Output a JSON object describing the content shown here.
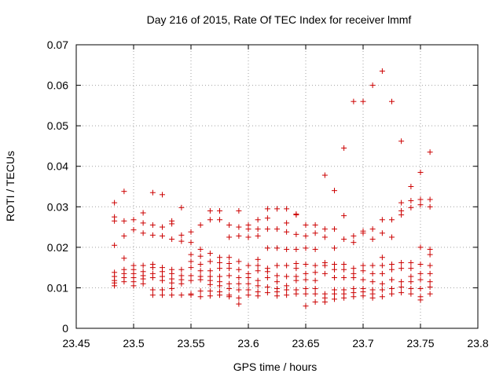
{
  "chart_data": {
    "type": "scatter",
    "title": "Day 216 of 2015, Rate Of TEC Index for receiver lmmf",
    "xlabel": "GPS time / hours",
    "ylabel": "ROTI / TECUs",
    "xlim": [
      23.45,
      23.8
    ],
    "ylim": [
      0,
      0.07
    ],
    "xticks": [
      "23.45",
      "23.5",
      "23.55",
      "23.6",
      "23.65",
      "23.7",
      "23.75",
      "23.8"
    ],
    "yticks": [
      "0",
      "0.01",
      "0.02",
      "0.03",
      "0.04",
      "0.05",
      "0.06",
      "0.07"
    ],
    "grid": true,
    "marker": "+",
    "color": "#cc0000",
    "series": [
      {
        "x": 23.4833,
        "y": [
          0.031,
          0.0275,
          0.0265,
          0.0205,
          0.0138,
          0.0128,
          0.0118,
          0.0112,
          0.0105
        ]
      },
      {
        "x": 23.4917,
        "y": [
          0.0338,
          0.0265,
          0.0228,
          0.0173,
          0.0145,
          0.0135,
          0.0125,
          0.0115
        ]
      },
      {
        "x": 23.5,
        "y": [
          0.0268,
          0.0243,
          0.0155,
          0.0145,
          0.0135,
          0.0125,
          0.0115,
          0.0105
        ]
      },
      {
        "x": 23.5083,
        "y": [
          0.0285,
          0.026,
          0.0235,
          0.0155,
          0.014,
          0.013,
          0.0122,
          0.011
        ]
      },
      {
        "x": 23.5167,
        "y": [
          0.0335,
          0.0255,
          0.023,
          0.0158,
          0.015,
          0.0135,
          0.0125,
          0.0095,
          0.0082
        ]
      },
      {
        "x": 23.525,
        "y": [
          0.033,
          0.025,
          0.0228,
          0.015,
          0.014,
          0.0128,
          0.0118,
          0.0095,
          0.0082
        ]
      },
      {
        "x": 23.5333,
        "y": [
          0.0265,
          0.0258,
          0.022,
          0.0145,
          0.0135,
          0.0122,
          0.0112,
          0.0098,
          0.0082
        ]
      },
      {
        "x": 23.5417,
        "y": [
          0.0298,
          0.023,
          0.0215,
          0.0145,
          0.013,
          0.012,
          0.011,
          0.0082
        ]
      },
      {
        "x": 23.55,
        "y": [
          0.0238,
          0.0212,
          0.0182,
          0.0165,
          0.015,
          0.013,
          0.0118,
          0.0085,
          0.0082
        ]
      },
      {
        "x": 23.5583,
        "y": [
          0.0255,
          0.0195,
          0.0178,
          0.0158,
          0.0142,
          0.0128,
          0.012,
          0.0092,
          0.0078
        ]
      },
      {
        "x": 23.5667,
        "y": [
          0.029,
          0.0268,
          0.0185,
          0.0165,
          0.0142,
          0.0128,
          0.0118,
          0.0108,
          0.0092,
          0.008
        ]
      },
      {
        "x": 23.575,
        "y": [
          0.029,
          0.0268,
          0.0175,
          0.0162,
          0.0148,
          0.0128,
          0.0115,
          0.0105,
          0.009,
          0.0082
        ]
      },
      {
        "x": 23.5833,
        "y": [
          0.0255,
          0.0225,
          0.0175,
          0.016,
          0.0148,
          0.013,
          0.011,
          0.0098,
          0.0082,
          0.0078
        ]
      },
      {
        "x": 23.5917,
        "y": [
          0.029,
          0.025,
          0.0228,
          0.0165,
          0.0145,
          0.0125,
          0.011,
          0.0095,
          0.0075,
          0.006
        ]
      },
      {
        "x": 23.6,
        "y": [
          0.0255,
          0.0245,
          0.0225,
          0.0155,
          0.0135,
          0.0125,
          0.011,
          0.0095,
          0.0082
        ]
      },
      {
        "x": 23.6083,
        "y": [
          0.0268,
          0.0245,
          0.0228,
          0.017,
          0.0155,
          0.0142,
          0.0118,
          0.0105,
          0.009,
          0.008
        ]
      },
      {
        "x": 23.6167,
        "y": [
          0.0295,
          0.0272,
          0.0245,
          0.0198,
          0.0148,
          0.014,
          0.0125,
          0.0102,
          0.0088
        ]
      },
      {
        "x": 23.625,
        "y": [
          0.0295,
          0.0245,
          0.0198,
          0.0155,
          0.013,
          0.0115,
          0.0098,
          0.009,
          0.008
        ]
      },
      {
        "x": 23.6333,
        "y": [
          0.0295,
          0.026,
          0.0238,
          0.0195,
          0.0155,
          0.0128,
          0.0105,
          0.0095,
          0.0082
        ]
      },
      {
        "x": 23.6417,
        "y": [
          0.0282,
          0.028,
          0.0232,
          0.0195,
          0.016,
          0.0148,
          0.0128,
          0.0118,
          0.0095,
          0.0085
        ]
      },
      {
        "x": 23.65,
        "y": [
          0.0255,
          0.0228,
          0.0198,
          0.0158,
          0.0135,
          0.012,
          0.0098,
          0.0085,
          0.0055
        ]
      },
      {
        "x": 23.6583,
        "y": [
          0.0255,
          0.0235,
          0.0195,
          0.0155,
          0.0138,
          0.0118,
          0.0098,
          0.0085,
          0.0065
        ]
      },
      {
        "x": 23.6667,
        "y": [
          0.0378,
          0.0245,
          0.0225,
          0.0162,
          0.0155,
          0.0135,
          0.0085,
          0.0075,
          0.0065
        ]
      },
      {
        "x": 23.675,
        "y": [
          0.034,
          0.0245,
          0.0198,
          0.0158,
          0.0145,
          0.0125,
          0.0095,
          0.0085,
          0.0072
        ]
      },
      {
        "x": 23.6833,
        "y": [
          0.0445,
          0.0278,
          0.022,
          0.0158,
          0.0145,
          0.0125,
          0.0095,
          0.0085,
          0.0075
        ]
      },
      {
        "x": 23.6917,
        "y": [
          0.056,
          0.0228,
          0.0212,
          0.0148,
          0.0135,
          0.0125,
          0.0098,
          0.0088,
          0.0078
        ]
      },
      {
        "x": 23.7,
        "y": [
          0.056,
          0.024,
          0.0235,
          0.0155,
          0.0142,
          0.012,
          0.0098,
          0.009,
          0.008
        ]
      },
      {
        "x": 23.7083,
        "y": [
          0.06,
          0.0245,
          0.022,
          0.0155,
          0.0135,
          0.0115,
          0.0095,
          0.0085,
          0.0075
        ]
      },
      {
        "x": 23.7167,
        "y": [
          0.0635,
          0.0268,
          0.0235,
          0.0175,
          0.0155,
          0.0135,
          0.011,
          0.0095,
          0.0078
        ]
      },
      {
        "x": 23.725,
        "y": [
          0.056,
          0.0268,
          0.0225,
          0.0158,
          0.0145,
          0.012,
          0.0098,
          0.0085
        ]
      },
      {
        "x": 23.7333,
        "y": [
          0.0462,
          0.031,
          0.029,
          0.028,
          0.0162,
          0.0148,
          0.0115,
          0.0102,
          0.0088
        ]
      },
      {
        "x": 23.7417,
        "y": [
          0.035,
          0.0315,
          0.0298,
          0.0162,
          0.0148,
          0.0128,
          0.0115,
          0.0098,
          0.0085
        ]
      },
      {
        "x": 23.75,
        "y": [
          0.0385,
          0.0318,
          0.0305,
          0.02,
          0.0158,
          0.0135,
          0.012,
          0.0098,
          0.0078,
          0.007
        ]
      },
      {
        "x": 23.7583,
        "y": [
          0.0435,
          0.0318,
          0.03,
          0.0195,
          0.0182,
          0.0155,
          0.0135,
          0.0115,
          0.0102,
          0.0085
        ]
      }
    ]
  }
}
